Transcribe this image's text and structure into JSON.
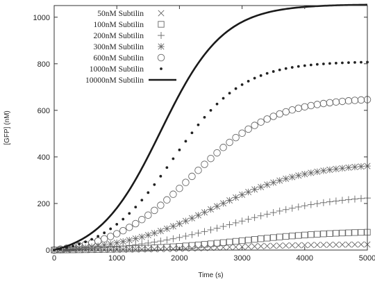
{
  "chart_data": {
    "type": "scatter",
    "title": "",
    "xlabel": "Time (s)",
    "ylabel": "[GFP] (nM)",
    "xlim": [
      0,
      5000
    ],
    "ylim": [
      0,
      1050
    ],
    "x_ticks": [
      "0",
      "1000",
      "2000",
      "3000",
      "4000",
      "5000"
    ],
    "y_ticks": [
      "0",
      "200",
      "400",
      "600",
      "800",
      "1000"
    ],
    "legend_position": "top-left",
    "grid": false,
    "series": [
      {
        "name": "50nM Subtilin",
        "marker": "x",
        "style": "markers",
        "vmax": 25,
        "t50": 2800,
        "width": 700,
        "color": "#666666"
      },
      {
        "name": "100nM Subtilin",
        "marker": "square",
        "style": "markers",
        "vmax": 82,
        "t50": 3000,
        "width": 750,
        "color": "#666666"
      },
      {
        "name": "200nM Subtilin",
        "marker": "plus",
        "style": "markers",
        "vmax": 240,
        "t50": 2900,
        "width": 800,
        "color": "#666666"
      },
      {
        "name": "300nM Subtilin",
        "marker": "asterisk",
        "style": "markers",
        "vmax": 375,
        "t50": 2550,
        "width": 750,
        "color": "#666666"
      },
      {
        "name": "600nM Subtilin",
        "marker": "circle",
        "style": "markers",
        "vmax": 655,
        "t50": 2200,
        "width": 650,
        "color": "#666666"
      },
      {
        "name": "1000nM Subtilin",
        "marker": "dot",
        "style": "markers",
        "vmax": 810,
        "t50": 1900,
        "width": 550,
        "color": "#222222"
      },
      {
        "name": "10000nM Subtilin",
        "marker": "none",
        "style": "line",
        "vmax": 1055,
        "t50": 1700,
        "width": 500,
        "color": "#1a1a1a"
      }
    ]
  }
}
